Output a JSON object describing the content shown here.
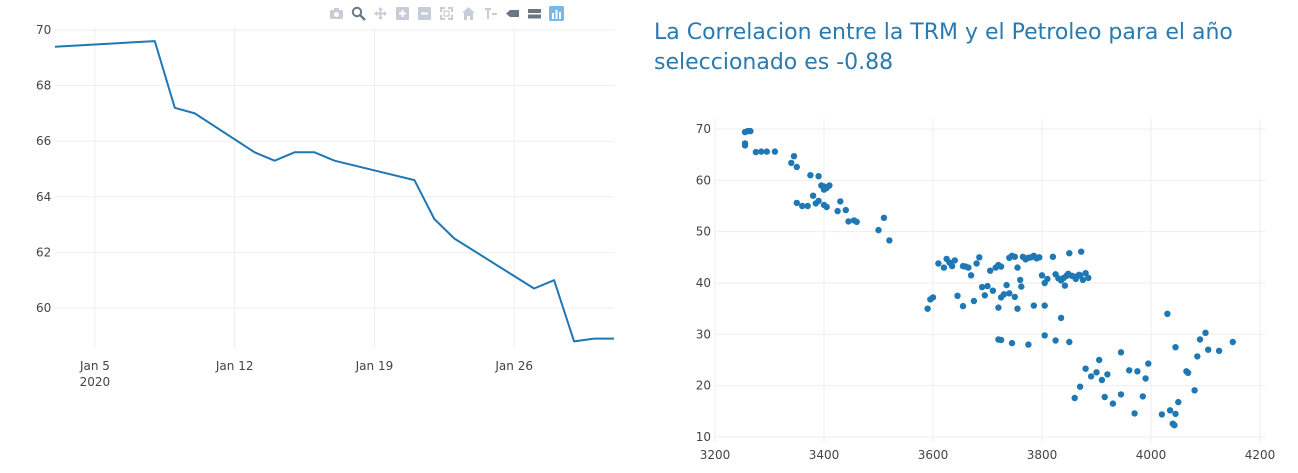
{
  "colors": {
    "accent": "#1f77b4",
    "title": "#2a7ab0",
    "grid": "#eeeeee",
    "tick": "#444444"
  },
  "modebar": {
    "buttons": [
      "camera-icon",
      "zoom-icon",
      "pan-icon",
      "zoom-in-icon",
      "zoom-out-icon",
      "autoscale-icon",
      "home-icon",
      "spike-lines-icon",
      "hover-closest-icon",
      "hover-compare-icon",
      "plotly-logo-icon"
    ]
  },
  "correlation_title": "La Correlacion entre la TRM y el Petroleo para el año seleccionado es -0.88",
  "chart_data": [
    {
      "type": "line",
      "title": "",
      "xlabel": "",
      "ylabel": "",
      "x_ticks": [
        {
          "date": "2020-01-05",
          "label": "Jan 5",
          "sublabel": "2020"
        },
        {
          "date": "2020-01-12",
          "label": "Jan 12",
          "sublabel": ""
        },
        {
          "date": "2020-01-19",
          "label": "Jan 19",
          "sublabel": ""
        },
        {
          "date": "2020-01-26",
          "label": "Jan 26",
          "sublabel": ""
        }
      ],
      "xlim": [
        "2020-01-03",
        "2020-01-31"
      ],
      "ylim": [
        58,
        70
      ],
      "y_ticks": [
        60,
        62,
        64,
        66,
        68,
        70
      ],
      "grid": true,
      "series": [
        {
          "x": [
            "2020-01-03",
            "2020-01-08",
            "2020-01-09",
            "2020-01-10",
            "2020-01-13",
            "2020-01-14",
            "2020-01-15",
            "2020-01-16",
            "2020-01-17",
            "2020-01-21",
            "2020-01-22",
            "2020-01-23",
            "2020-01-27",
            "2020-01-28",
            "2020-01-29",
            "2020-01-30",
            "2020-01-31"
          ],
          "y": [
            69.4,
            69.6,
            67.2,
            67.0,
            65.6,
            65.3,
            65.6,
            65.6,
            65.3,
            64.6,
            63.2,
            62.5,
            60.7,
            61.0,
            58.8,
            58.9,
            58.9
          ]
        }
      ]
    },
    {
      "type": "scatter",
      "title": "",
      "xlabel": "",
      "ylabel": "",
      "xlim": [
        3200,
        4210
      ],
      "ylim": [
        9,
        72
      ],
      "x_ticks": [
        3200,
        3400,
        3600,
        3800,
        4000,
        4200
      ],
      "y_ticks": [
        10,
        20,
        30,
        40,
        50,
        60,
        70
      ],
      "grid": true,
      "series": [
        {
          "points": [
            [
              3255,
              69.4
            ],
            [
              3260,
              69.6
            ],
            [
              3265,
              69.6
            ],
            [
              3255,
              67.2
            ],
            [
              3255,
              66.8
            ],
            [
              3275,
              65.5
            ],
            [
              3285,
              65.6
            ],
            [
              3295,
              65.6
            ],
            [
              3310,
              65.6
            ],
            [
              3340,
              63.4
            ],
            [
              3345,
              64.7
            ],
            [
              3350,
              62.6
            ],
            [
              3375,
              61.0
            ],
            [
              3390,
              60.8
            ],
            [
              3395,
              59.0
            ],
            [
              3400,
              58.8
            ],
            [
              3405,
              58.5
            ],
            [
              3410,
              59.0
            ],
            [
              3400,
              58.2
            ],
            [
              3380,
              57.0
            ],
            [
              3385,
              55.5
            ],
            [
              3350,
              55.6
            ],
            [
              3360,
              55.0
            ],
            [
              3370,
              55.0
            ],
            [
              3390,
              56.0
            ],
            [
              3400,
              55.2
            ],
            [
              3405,
              54.8
            ],
            [
              3425,
              54.0
            ],
            [
              3430,
              55.9
            ],
            [
              3440,
              54.2
            ],
            [
              3445,
              52.0
            ],
            [
              3455,
              52.2
            ],
            [
              3460,
              51.9
            ],
            [
              3500,
              50.3
            ],
            [
              3510,
              52.7
            ],
            [
              3520,
              48.3
            ],
            [
              3590,
              35.0
            ],
            [
              3595,
              36.8
            ],
            [
              3600,
              37.2
            ],
            [
              3610,
              43.8
            ],
            [
              3620,
              43.0
            ],
            [
              3625,
              44.7
            ],
            [
              3630,
              44.0
            ],
            [
              3635,
              43.3
            ],
            [
              3640,
              44.4
            ],
            [
              3655,
              43.3
            ],
            [
              3660,
              43.2
            ],
            [
              3665,
              43.0
            ],
            [
              3670,
              41.5
            ],
            [
              3680,
              43.8
            ],
            [
              3685,
              45.0
            ],
            [
              3690,
              39.2
            ],
            [
              3695,
              37.6
            ],
            [
              3700,
              39.4
            ],
            [
              3705,
              42.4
            ],
            [
              3710,
              38.5
            ],
            [
              3715,
              43.0
            ],
            [
              3720,
              43.5
            ],
            [
              3725,
              43.2
            ],
            [
              3730,
              37.8
            ],
            [
              3735,
              39.6
            ],
            [
              3740,
              44.9
            ],
            [
              3745,
              45.3
            ],
            [
              3750,
              45.1
            ],
            [
              3755,
              43.0
            ],
            [
              3760,
              40.6
            ],
            [
              3762,
              39.3
            ],
            [
              3765,
              45.1
            ],
            [
              3770,
              44.6
            ],
            [
              3775,
              44.9
            ],
            [
              3780,
              45.0
            ],
            [
              3785,
              45.3
            ],
            [
              3790,
              44.8
            ],
            [
              3795,
              45.0
            ],
            [
              3800,
              41.5
            ],
            [
              3805,
              40.0
            ],
            [
              3810,
              40.8
            ],
            [
              3820,
              45.1
            ],
            [
              3825,
              41.7
            ],
            [
              3830,
              40.9
            ],
            [
              3835,
              40.5
            ],
            [
              3840,
              41.0
            ],
            [
              3842,
              39.5
            ],
            [
              3845,
              41.4
            ],
            [
              3848,
              41.8
            ],
            [
              3850,
              45.8
            ],
            [
              3855,
              41.4
            ],
            [
              3860,
              41.2
            ],
            [
              3862,
              40.8
            ],
            [
              3865,
              41.3
            ],
            [
              3868,
              41.6
            ],
            [
              3870,
              41.5
            ],
            [
              3872,
              46.1
            ],
            [
              3875,
              40.6
            ],
            [
              3880,
              41.9
            ],
            [
              3885,
              41.0
            ],
            [
              3645,
              37.5
            ],
            [
              3655,
              35.5
            ],
            [
              3675,
              36.5
            ],
            [
              3720,
              35.2
            ],
            [
              3725,
              37.2
            ],
            [
              3740,
              38.0
            ],
            [
              3750,
              37.3
            ],
            [
              3755,
              35.0
            ],
            [
              3785,
              35.6
            ],
            [
              3805,
              35.6
            ],
            [
              3835,
              33.2
            ],
            [
              3720,
              29.0
            ],
            [
              3725,
              28.9
            ],
            [
              3745,
              28.3
            ],
            [
              3775,
              28.0
            ],
            [
              3805,
              29.8
            ],
            [
              3825,
              28.8
            ],
            [
              3850,
              28.5
            ],
            [
              3860,
              17.6
            ],
            [
              3870,
              19.8
            ],
            [
              3880,
              23.3
            ],
            [
              3890,
              21.8
            ],
            [
              3900,
              22.6
            ],
            [
              3905,
              25.0
            ],
            [
              3910,
              21.1
            ],
            [
              3915,
              17.8
            ],
            [
              3920,
              22.2
            ],
            [
              3930,
              16.5
            ],
            [
              3945,
              18.3
            ],
            [
              3945,
              26.5
            ],
            [
              3960,
              23.0
            ],
            [
              3970,
              14.6
            ],
            [
              3975,
              22.8
            ],
            [
              3985,
              17.9
            ],
            [
              3990,
              21.4
            ],
            [
              3995,
              24.3
            ],
            [
              4020,
              14.4
            ],
            [
              4030,
              34.0
            ],
            [
              4035,
              15.2
            ],
            [
              4040,
              12.6
            ],
            [
              4043,
              12.3
            ],
            [
              4045,
              14.5
            ],
            [
              4045,
              27.5
            ],
            [
              4050,
              16.8
            ],
            [
              4065,
              22.8
            ],
            [
              4068,
              22.5
            ],
            [
              4080,
              19.1
            ],
            [
              4085,
              25.7
            ],
            [
              4090,
              29.0
            ],
            [
              4100,
              30.3
            ],
            [
              4105,
              27.0
            ],
            [
              4125,
              26.8
            ],
            [
              4150,
              28.5
            ]
          ]
        }
      ]
    }
  ]
}
